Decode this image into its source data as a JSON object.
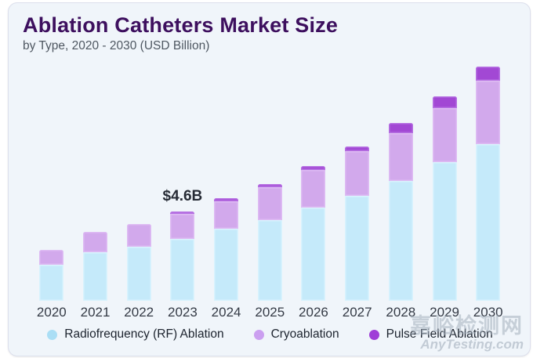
{
  "header": {
    "title": "Ablation Catheters Market Size",
    "subtitle": "by Type, 2020 - 2030 (USD Billion)"
  },
  "chart_data": {
    "type": "bar",
    "stacked": true,
    "title": "Ablation Catheters Market Size",
    "subtitle": "by Type, 2020 - 2030 (USD Billion)",
    "unit": "USD Billion",
    "categories": [
      "2020",
      "2021",
      "2022",
      "2023",
      "2024",
      "2025",
      "2026",
      "2027",
      "2028",
      "2029",
      "2030"
    ],
    "series": [
      {
        "key": "rf",
        "name": "Radiofrequency (RF) Ablation",
        "color": "#c5eafa",
        "edge_color": "#d9f3fd",
        "values": [
          1.86,
          2.49,
          2.78,
          3.19,
          3.7,
          4.17,
          4.8,
          5.41,
          6.19,
          7.13,
          8.07
        ]
      },
      {
        "key": "cryo",
        "name": "Cryoablation",
        "color": "#d2a9ec",
        "edge_color": "#debcf3",
        "values": [
          0.77,
          1.04,
          1.19,
          1.29,
          1.41,
          1.68,
          1.95,
          2.3,
          2.46,
          2.8,
          3.25
        ]
      },
      {
        "key": "pulse",
        "name": "Pulse Field Ablation",
        "color": "#a248d4",
        "edge_color": "#b671e2",
        "values": [
          0,
          0,
          0,
          0.12,
          0.16,
          0.17,
          0.17,
          0.25,
          0.51,
          0.59,
          0.75
        ]
      }
    ],
    "totals": [
      2.63,
      3.53,
      3.97,
      4.6,
      5.27,
      6.02,
      6.92,
      7.96,
      9.16,
      10.52,
      12.07
    ],
    "annotation": {
      "category": "2023",
      "label": "$4.6B"
    },
    "axes": {
      "x_ticks_visible": true,
      "y_axis_visible": false,
      "gridlines": false
    },
    "legend_position": "bottom"
  },
  "legend": {
    "items": [
      {
        "key": "rf",
        "label": "Radiofrequency (RF) Ablation",
        "color": "#aadef5"
      },
      {
        "key": "cryo",
        "label": "Cryoablation",
        "color": "#cb9ff0"
      },
      {
        "key": "pulse",
        "label": "Pulse Field Ablation",
        "color": "#9f3ed7"
      }
    ]
  },
  "watermark": {
    "line1": "嘉峪检测网",
    "line2": "AnyTesting.com"
  }
}
